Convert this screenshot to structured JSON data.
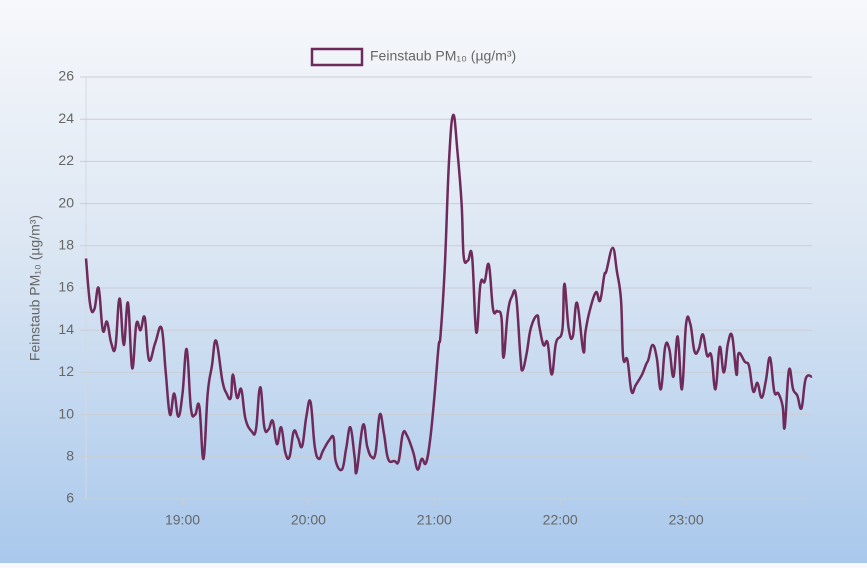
{
  "chart_data": {
    "type": "line",
    "ylabel": "Feinstaub PM₁₀ (µg/m³)",
    "legend": "top",
    "grid": true,
    "xlim": [
      1094,
      1440
    ],
    "xticks": [
      {
        "value": 1140,
        "label": "19:00"
      },
      {
        "value": 1200,
        "label": "20:00"
      },
      {
        "value": 1260,
        "label": "21:00"
      },
      {
        "value": 1320,
        "label": "22:00"
      },
      {
        "value": 1380,
        "label": "23:00"
      }
    ],
    "ylim": [
      6,
      26
    ],
    "yticks": [
      6,
      8,
      10,
      12,
      14,
      16,
      18,
      20,
      22,
      24,
      26
    ],
    "x": [
      1094,
      1096,
      1098,
      1100,
      1102,
      1104,
      1106,
      1108,
      1110,
      1112,
      1114,
      1116,
      1118,
      1120,
      1122,
      1124,
      1127,
      1130,
      1132,
      1134,
      1136,
      1138,
      1140,
      1142,
      1144,
      1146,
      1148,
      1150,
      1152,
      1154,
      1156,
      1159,
      1161,
      1163,
      1164,
      1166,
      1168,
      1170,
      1173,
      1175,
      1177,
      1179,
      1181,
      1183,
      1185,
      1187,
      1189,
      1191,
      1193,
      1195,
      1197,
      1199,
      1201,
      1203,
      1205,
      1207,
      1210,
      1212,
      1213,
      1216,
      1218,
      1220,
      1222,
      1223,
      1226,
      1228,
      1230,
      1232,
      1234,
      1236,
      1238,
      1241,
      1243,
      1245,
      1247,
      1250,
      1252,
      1254,
      1256,
      1258,
      1260,
      1262,
      1263,
      1265,
      1267,
      1269,
      1271,
      1273,
      1274,
      1276,
      1278,
      1280,
      1282,
      1284,
      1286,
      1288,
      1290,
      1292,
      1293,
      1295,
      1297,
      1299,
      1301,
      1302,
      1304,
      1306,
      1309,
      1310,
      1312,
      1314,
      1316,
      1318,
      1321,
      1322,
      1324,
      1326,
      1328,
      1331,
      1332,
      1334,
      1337,
      1339,
      1341,
      1342,
      1345,
      1347,
      1349,
      1350,
      1352,
      1354,
      1356,
      1359,
      1361,
      1362,
      1364,
      1366,
      1368,
      1370,
      1372,
      1374,
      1376,
      1378,
      1380,
      1382,
      1384,
      1386,
      1388,
      1390,
      1392,
      1394,
      1396,
      1398,
      1400,
      1402,
      1404,
      1405,
      1408,
      1410,
      1412,
      1414,
      1416,
      1418,
      1420,
      1422,
      1424,
      1426,
      1427,
      1429,
      1431,
      1433,
      1435,
      1437,
      1440
    ],
    "series": [
      {
        "name": "Feinstaub PM₁₀ (µg/m³)",
        "color": "#6e2a5a",
        "values": [
          17.4,
          15.2,
          15.0,
          16.0,
          14.0,
          14.4,
          13.4,
          13.2,
          15.5,
          13.3,
          15.3,
          12.2,
          14.3,
          14.0,
          14.6,
          12.6,
          13.4,
          14.1,
          12.0,
          10.0,
          11.0,
          9.9,
          11.0,
          13.1,
          10.3,
          10.0,
          10.4,
          7.9,
          11.0,
          12.3,
          13.5,
          11.6,
          11.0,
          10.8,
          11.9,
          10.8,
          11.2,
          9.8,
          9.2,
          9.3,
          11.3,
          9.4,
          9.3,
          9.7,
          8.6,
          9.4,
          8.2,
          8.0,
          9.2,
          8.9,
          8.5,
          9.9,
          10.6,
          8.5,
          7.9,
          8.3,
          8.8,
          8.9,
          7.8,
          7.4,
          8.4,
          9.4,
          8.0,
          7.3,
          9.5,
          8.5,
          8.0,
          8.2,
          10.0,
          9.1,
          7.9,
          7.8,
          7.8,
          9.1,
          9.0,
          8.2,
          7.4,
          7.9,
          7.7,
          8.8,
          10.8,
          13.2,
          13.8,
          17.0,
          22.0,
          24.2,
          22.5,
          20.0,
          17.5,
          17.3,
          17.5,
          13.9,
          16.2,
          16.3,
          17.1,
          15.0,
          14.9,
          14.6,
          12.7,
          14.8,
          15.6,
          15.6,
          12.8,
          12.1,
          12.9,
          14.1,
          14.7,
          14.2,
          13.3,
          13.4,
          11.9,
          13.4,
          14.0,
          16.2,
          14.1,
          13.7,
          15.3,
          13.0,
          13.9,
          14.9,
          15.8,
          15.4,
          16.6,
          16.8,
          17.9,
          16.8,
          15.4,
          12.7,
          12.6,
          11.1,
          11.4,
          11.9,
          12.4,
          12.6,
          13.3,
          12.7,
          11.2,
          13.2,
          13.1,
          11.8,
          13.7,
          11.2,
          14.3,
          14.3,
          13.0,
          13.1,
          13.8,
          12.8,
          12.8,
          11.2,
          13.2,
          12.0,
          13.4,
          13.7,
          11.9,
          12.9,
          12.5,
          12.3,
          11.1,
          11.5,
          10.8,
          11.6,
          12.7,
          11.1,
          11.0,
          10.4,
          9.4,
          12.1,
          11.2,
          10.9,
          10.3,
          11.7,
          11.8
        ]
      }
    ]
  }
}
